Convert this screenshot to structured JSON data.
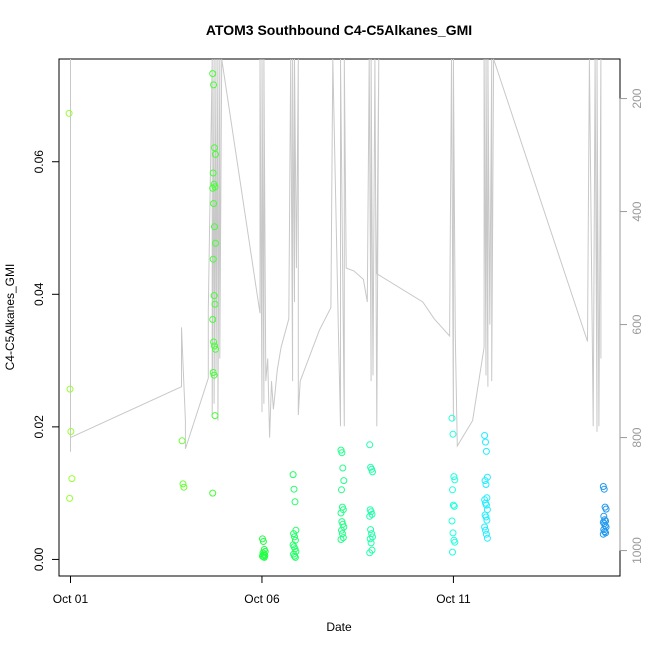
{
  "chart_data": {
    "type": "scatter",
    "title": "ATOM3 Southbound C4-C5Alkanes_GMI",
    "xlabel": "Date",
    "ylabel": "C4-C5Alkanes_GMI",
    "x_ticks": [
      "Oct 01",
      "Oct 06",
      "Oct 11"
    ],
    "x_range_days": [
      -0.3,
      14.35
    ],
    "ylim": [
      -0.0025,
      0.0755
    ],
    "y_ticks": [
      0.0,
      0.02,
      0.04,
      0.06
    ],
    "y_tick_labels": [
      "0.00",
      "0.02",
      "0.04",
      "0.06"
    ],
    "y2_range": [
      1045,
      130
    ],
    "y2_reversed": true,
    "y2_ticks": [
      200,
      400,
      600,
      800,
      1000
    ],
    "y2_tick_labels": [
      "200",
      "400",
      "600",
      "800",
      "1000"
    ],
    "grid": false,
    "colors": {
      "line": "#c8c8c8",
      "axis": "#000000",
      "axis_right": "#9a9a9a"
    },
    "point_groups": [
      {
        "day": 0.0,
        "color": "#99ff33",
        "values": [
          0.0673,
          0.0257,
          0.0193,
          0.0122,
          0.0092
        ]
      },
      {
        "day": 2.95,
        "color": "#66ff33",
        "values": [
          0.0179,
          0.0114,
          0.0109
        ]
      },
      {
        "day": 3.75,
        "color": "#44ff33",
        "values": [
          0.0733,
          0.0716,
          0.0621,
          0.0611,
          0.0583,
          0.0566,
          0.0562,
          0.056,
          0.0537,
          0.0502,
          0.0477,
          0.0453,
          0.0398,
          0.0385,
          0.0362,
          0.0328,
          0.0322,
          0.0317,
          0.0282,
          0.0278,
          0.0217,
          0.01
        ]
      },
      {
        "day": 5.05,
        "color": "#22ff44",
        "values": [
          0.0031,
          0.0027,
          0.0015,
          0.0012,
          0.001,
          0.0008,
          0.0006,
          0.0005,
          0.0004,
          0.0003
        ]
      },
      {
        "day": 5.85,
        "color": "#22ff66",
        "values": [
          0.0128,
          0.0106,
          0.0087,
          0.0044,
          0.0039,
          0.0034,
          0.0029,
          0.0022,
          0.0019,
          0.0016,
          0.0012,
          0.0008,
          0.0005,
          0.0003
        ]
      },
      {
        "day": 7.1,
        "color": "#22ff88",
        "values": [
          0.0165,
          0.0161,
          0.0138,
          0.0119,
          0.0105,
          0.0079,
          0.0075,
          0.007,
          0.0057,
          0.0053,
          0.0049,
          0.0044,
          0.0039,
          0.0033,
          0.003
        ]
      },
      {
        "day": 7.85,
        "color": "#22ffaa",
        "values": [
          0.0173,
          0.0139,
          0.0136,
          0.0132,
          0.0075,
          0.0072,
          0.0068,
          0.0065,
          0.0045,
          0.0039,
          0.0034,
          0.0031,
          0.0025,
          0.0014,
          0.001
        ]
      },
      {
        "day": 10.0,
        "color": "#22ffdd",
        "values": [
          0.0213,
          0.0189,
          0.0125,
          0.012,
          0.0105,
          0.0082,
          0.008,
          0.0058,
          0.004,
          0.0029,
          0.0026,
          0.0011
        ]
      },
      {
        "day": 10.85,
        "color": "#22eeff",
        "values": [
          0.0187,
          0.0177,
          0.0163,
          0.0124,
          0.0119,
          0.0113,
          0.0093,
          0.009,
          0.0085,
          0.0082,
          0.0075,
          0.0067,
          0.0064,
          0.0059,
          0.0049,
          0.0044,
          0.0038,
          0.0032
        ]
      },
      {
        "day": 13.95,
        "color": "#2299ee",
        "values": [
          0.011,
          0.0106,
          0.0079,
          0.0076,
          0.0065,
          0.006,
          0.0058,
          0.0056,
          0.0054,
          0.0051,
          0.0049,
          0.0045,
          0.0042,
          0.004,
          0.0038
        ]
      }
    ],
    "pressure_line": [
      [
        0.0,
        155
      ],
      [
        0.0,
        130
      ],
      [
        0.0,
        825
      ],
      [
        0.0,
        800
      ],
      [
        2.9,
        710
      ],
      [
        2.9,
        605
      ],
      [
        3.0,
        770
      ],
      [
        3.0,
        820
      ],
      [
        3.6,
        695
      ],
      [
        3.6,
        575
      ],
      [
        3.7,
        130
      ],
      [
        3.7,
        760
      ],
      [
        3.75,
        130
      ],
      [
        3.75,
        740
      ],
      [
        3.8,
        130
      ],
      [
        3.8,
        690
      ],
      [
        3.85,
        130
      ],
      [
        3.85,
        770
      ],
      [
        3.9,
        130
      ],
      [
        3.9,
        660
      ],
      [
        3.95,
        130
      ],
      [
        4.95,
        580
      ],
      [
        4.95,
        130
      ],
      [
        5.0,
        755
      ],
      [
        5.0,
        130
      ],
      [
        5.05,
        740
      ],
      [
        5.05,
        130
      ],
      [
        5.1,
        700
      ],
      [
        5.15,
        660
      ],
      [
        5.2,
        800
      ],
      [
        5.25,
        700
      ],
      [
        5.3,
        750
      ],
      [
        5.4,
        680
      ],
      [
        5.5,
        640
      ],
      [
        5.7,
        590
      ],
      [
        5.75,
        130
      ],
      [
        5.8,
        700
      ],
      [
        5.8,
        130
      ],
      [
        5.85,
        560
      ],
      [
        5.85,
        130
      ],
      [
        5.9,
        500
      ],
      [
        5.95,
        130
      ],
      [
        5.95,
        760
      ],
      [
        6.0,
        700
      ],
      [
        6.5,
        610
      ],
      [
        6.8,
        570
      ],
      [
        6.85,
        130
      ],
      [
        7.0,
        620
      ],
      [
        7.05,
        780
      ],
      [
        7.05,
        130
      ],
      [
        7.15,
        780
      ],
      [
        7.15,
        130
      ],
      [
        7.2,
        500
      ],
      [
        7.4,
        505
      ],
      [
        7.65,
        520
      ],
      [
        7.75,
        560
      ],
      [
        7.8,
        130
      ],
      [
        7.85,
        700
      ],
      [
        7.85,
        130
      ],
      [
        7.9,
        690
      ],
      [
        7.95,
        130
      ],
      [
        8.0,
        780
      ],
      [
        8.05,
        130
      ],
      [
        8.0,
        510
      ],
      [
        9.2,
        560
      ],
      [
        9.5,
        590
      ],
      [
        9.9,
        620
      ],
      [
        9.95,
        130
      ],
      [
        10.0,
        770
      ],
      [
        10.0,
        130
      ],
      [
        10.05,
        620
      ],
      [
        10.1,
        815
      ],
      [
        10.5,
        770
      ],
      [
        10.8,
        640
      ],
      [
        10.8,
        130
      ],
      [
        10.85,
        690
      ],
      [
        10.85,
        130
      ],
      [
        10.9,
        710
      ],
      [
        10.9,
        130
      ],
      [
        10.95,
        600
      ],
      [
        11.0,
        130
      ],
      [
        11.0,
        700
      ],
      [
        11.05,
        130
      ],
      [
        13.5,
        630
      ],
      [
        13.55,
        130
      ],
      [
        13.65,
        780
      ],
      [
        13.7,
        130
      ],
      [
        13.75,
        790
      ],
      [
        13.75,
        130
      ],
      [
        13.8,
        780
      ],
      [
        13.85,
        130
      ],
      [
        13.85,
        660
      ]
    ]
  }
}
